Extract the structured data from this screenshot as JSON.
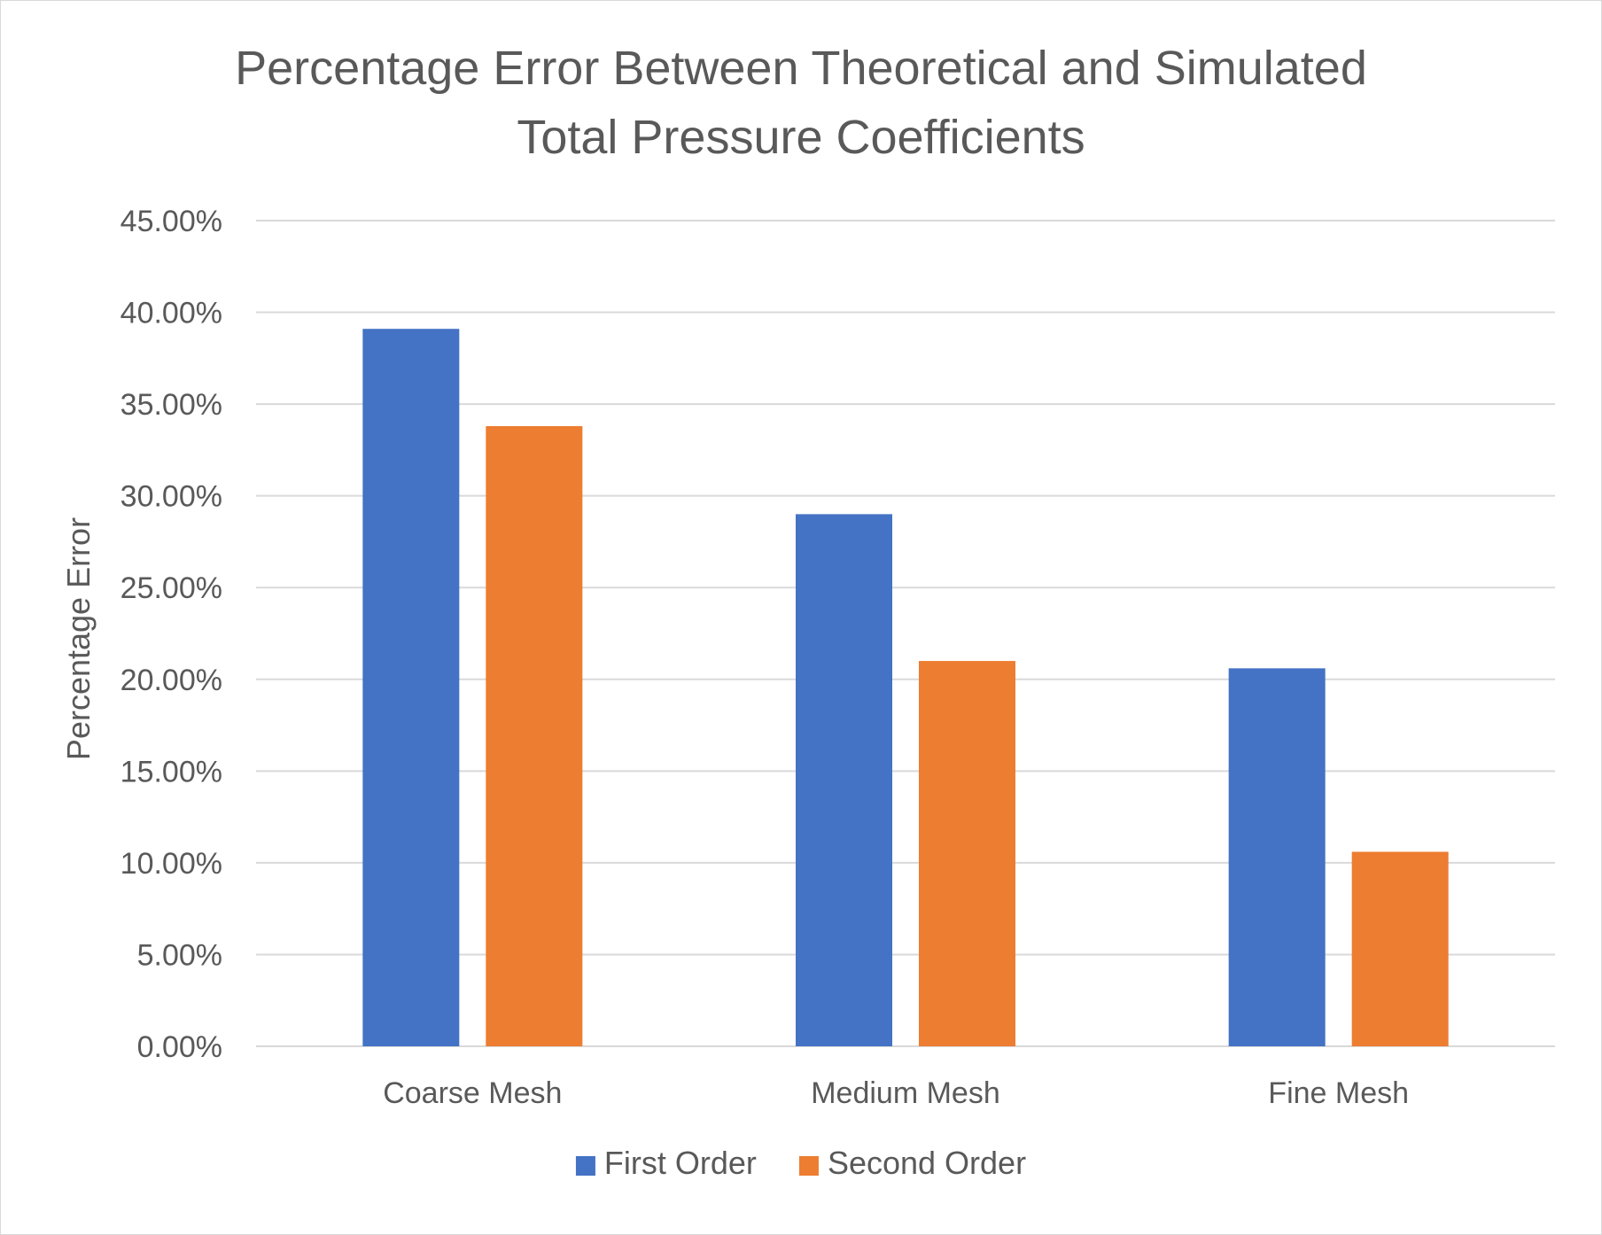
{
  "chart_data": {
    "type": "bar",
    "title": "Percentage Error Between Theoretical and Simulated Total Pressure Coefficients",
    "title_lines": [
      "Percentage Error Between Theoretical and Simulated",
      "Total Pressure Coefficients"
    ],
    "xlabel": "",
    "ylabel": "Percentage Error",
    "categories": [
      "Coarse Mesh",
      "Medium Mesh",
      "Fine Mesh"
    ],
    "series": [
      {
        "name": "First Order",
        "color": "#4472C4",
        "values": [
          39.1,
          29.0,
          20.6
        ]
      },
      {
        "name": "Second Order",
        "color": "#ED7D31",
        "values": [
          33.8,
          21.0,
          10.6
        ]
      }
    ],
    "ylim": [
      0,
      45
    ],
    "yticks": [
      0,
      5,
      10,
      15,
      20,
      25,
      30,
      35,
      40,
      45
    ],
    "ytick_labels": [
      "0.00%",
      "5.00%",
      "10.00%",
      "15.00%",
      "20.00%",
      "25.00%",
      "30.00%",
      "35.00%",
      "40.00%",
      "45.00%"
    ],
    "grid": true,
    "legend_position": "bottom"
  }
}
